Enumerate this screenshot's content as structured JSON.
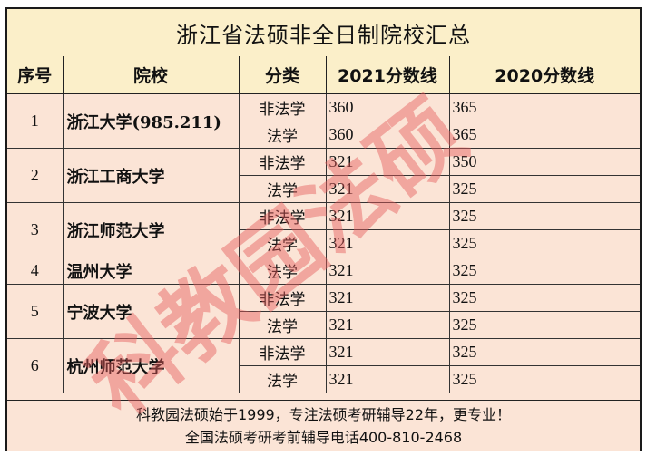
{
  "title": "浙江省法硕非全日制院校汇总",
  "headers": {
    "seq": "序号",
    "school": "院校",
    "category": "分类",
    "score2021": "2021分数线",
    "score2020": "2020分数线"
  },
  "schools": [
    {
      "seq": "1",
      "name": "浙江大学(985.211)",
      "rows": [
        {
          "category": "非法学",
          "score2021": "360",
          "score2020": "365"
        },
        {
          "category": "法学",
          "score2021": "360",
          "score2020": "365"
        }
      ]
    },
    {
      "seq": "2",
      "name": "浙江工商大学",
      "rows": [
        {
          "category": "非法学",
          "score2021": "321",
          "score2020": "350"
        },
        {
          "category": "法学",
          "score2021": "321",
          "score2020": "325"
        }
      ]
    },
    {
      "seq": "3",
      "name": "浙江师范大学",
      "rows": [
        {
          "category": "非法学",
          "score2021": "321",
          "score2020": "325"
        },
        {
          "category": "法学",
          "score2021": "321",
          "score2020": "325"
        }
      ]
    },
    {
      "seq": "4",
      "name": "温州大学",
      "rows": [
        {
          "category": "法学",
          "score2021": "321",
          "score2020": "325"
        }
      ]
    },
    {
      "seq": "5",
      "name": "宁波大学",
      "rows": [
        {
          "category": "非法学",
          "score2021": "321",
          "score2020": "325"
        },
        {
          "category": "法学",
          "score2021": "321",
          "score2020": "325"
        }
      ]
    },
    {
      "seq": "6",
      "name": "杭州师范大学",
      "rows": [
        {
          "category": "非法学",
          "score2021": "321",
          "score2020": "325"
        },
        {
          "category": "法学",
          "score2021": "321",
          "score2020": "325"
        }
      ]
    }
  ],
  "footer": {
    "line1": "科教园法硕始于1999，专注法硕考研辅导22年，更专业！",
    "line2": "全国法硕考研考前辅导电话400-810-2468"
  },
  "watermark": "科教园法硕",
  "colors": {
    "header_bg": "#fbefc9",
    "body_bg": "#fbe4d6",
    "watermark": "#e45a5a"
  }
}
